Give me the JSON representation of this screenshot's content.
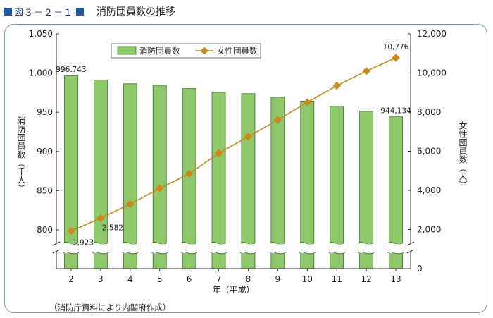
{
  "figure": {
    "label": "図３－２－１",
    "title": "消防団員数の推移",
    "source": "（消防庁資料により内閣府作成）",
    "accent": "#1f5aa6"
  },
  "chart_data": {
    "type": "bar",
    "categories": [
      "2",
      "3",
      "4",
      "5",
      "6",
      "7",
      "8",
      "9",
      "10",
      "11",
      "12",
      "13"
    ],
    "xlabel": "年（平成）",
    "ylabel": "消防団員数（千人）",
    "ylabel_right": "女性団員数（人）",
    "ylim": [
      780,
      1050
    ],
    "ylim_right": [
      0,
      12000
    ],
    "y_ticks": [
      "800",
      "850",
      "900",
      "950",
      "1,000",
      "1,050"
    ],
    "y_right_ticks": [
      "0",
      "2,000",
      "4,000",
      "6,000",
      "8,000",
      "10,000",
      "12,000"
    ],
    "axis_break": true,
    "grid": false,
    "legend_position": "top",
    "series": [
      {
        "name": "消防団員数",
        "kind": "bar",
        "axis": "left",
        "color": "#8ec86b",
        "values": [
          996.743,
          991.2,
          986.3,
          984.4,
          980.2,
          975.5,
          973.7,
          969.2,
          964.2,
          957.6,
          951.2,
          944.134
        ]
      },
      {
        "name": "女性団員数",
        "kind": "line",
        "axis": "right",
        "color": "#c98a1b",
        "values": [
          1923,
          2582,
          3300,
          4100,
          4850,
          5900,
          6750,
          7600,
          8500,
          9350,
          10100,
          10776
        ]
      }
    ],
    "annotations": [
      {
        "series": 0,
        "index": 0,
        "text": "996.743"
      },
      {
        "series": 0,
        "index": 11,
        "text": "944,134"
      },
      {
        "series": 1,
        "index": 0,
        "text": "1,923"
      },
      {
        "series": 1,
        "index": 1,
        "text": "2,582"
      },
      {
        "series": 1,
        "index": 11,
        "text": "10,776"
      }
    ]
  }
}
